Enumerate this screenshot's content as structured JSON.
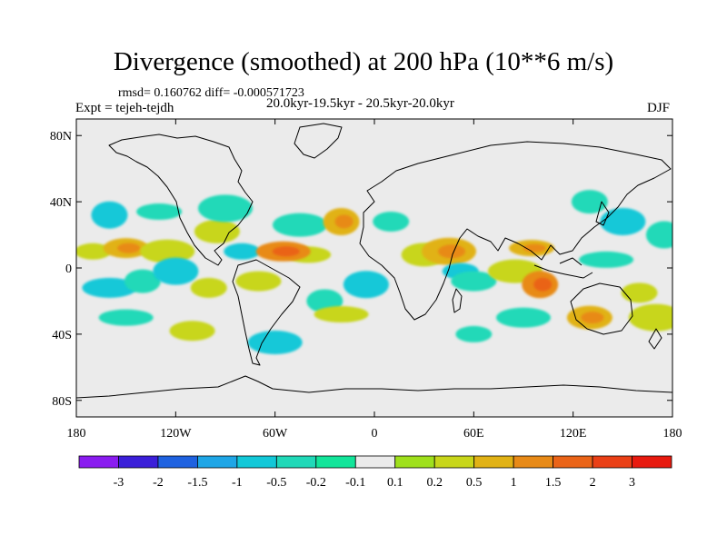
{
  "title": "Divergence (smoothed) at 200 hPa (10**6 m/s)",
  "stats": "rmsd= 0.160762 diff= -0.000571723",
  "experiment": "Expt = tejeh-tejdh",
  "period": "20.0kyr-19.5kyr - 20.5kyr-20.0kyr",
  "season": "DJF",
  "map": {
    "projection": "cylindrical-equidistant",
    "lon_range": [
      -180,
      180
    ],
    "lat_range": [
      -90,
      90
    ],
    "background_color": "#ebebeb",
    "x_ticks": [
      {
        "lon": -180,
        "label": "180"
      },
      {
        "lon": -120,
        "label": "120W"
      },
      {
        "lon": -60,
        "label": "60W"
      },
      {
        "lon": 0,
        "label": "0"
      },
      {
        "lon": 60,
        "label": "60E"
      },
      {
        "lon": 120,
        "label": "120E"
      },
      {
        "lon": 180,
        "label": "180"
      }
    ],
    "y_ticks": [
      {
        "lat": 80,
        "label": "80N"
      },
      {
        "lat": 40,
        "label": "40N"
      },
      {
        "lat": 0,
        "label": "0"
      },
      {
        "lat": -40,
        "label": "40S"
      },
      {
        "lat": -80,
        "label": "80S"
      }
    ]
  },
  "colorbar": {
    "colors": [
      "#8a1cf0",
      "#3b1fd9",
      "#1f62e0",
      "#1fa6e6",
      "#12c8d8",
      "#20d9b8",
      "#12e59a",
      "#ebebeb",
      "#9fe01c",
      "#c8d61a",
      "#e1b215",
      "#e88a17",
      "#ea6418",
      "#ea4016",
      "#e81a0f"
    ],
    "labels": [
      "-3",
      "-2",
      "-1.5",
      "-1",
      "-0.5",
      "-0.2",
      "-0.1",
      "0.1",
      "0.2",
      "0.5",
      "1",
      "1.5",
      "2",
      "3"
    ]
  },
  "divergence_regions": [
    {
      "lon": -170,
      "lat": 10,
      "level": 9
    },
    {
      "lon": -150,
      "lat": 12,
      "level": 10
    },
    {
      "lon": -125,
      "lat": 10,
      "level": 9
    },
    {
      "lon": -160,
      "lat": 32,
      "level": 4
    },
    {
      "lon": -130,
      "lat": 34,
      "level": 5
    },
    {
      "lon": -160,
      "lat": -12,
      "level": 4
    },
    {
      "lon": -140,
      "lat": -8,
      "level": 5
    },
    {
      "lon": -120,
      "lat": -2,
      "level": 4
    },
    {
      "lon": -150,
      "lat": -30,
      "level": 5
    },
    {
      "lon": -100,
      "lat": -12,
      "level": 9
    },
    {
      "lon": -95,
      "lat": 22,
      "level": 9
    },
    {
      "lon": -90,
      "lat": 36,
      "level": 5
    },
    {
      "lon": -80,
      "lat": 10,
      "level": 4
    },
    {
      "lon": -70,
      "lat": -8,
      "level": 9
    },
    {
      "lon": -45,
      "lat": 26,
      "level": 5
    },
    {
      "lon": -20,
      "lat": 28,
      "level": 10
    },
    {
      "lon": -40,
      "lat": 8,
      "level": 9
    },
    {
      "lon": -55,
      "lat": 10,
      "level": 11
    },
    {
      "lon": -30,
      "lat": -20,
      "level": 5
    },
    {
      "lon": -5,
      "lat": -10,
      "level": 4
    },
    {
      "lon": -20,
      "lat": -28,
      "level": 9
    },
    {
      "lon": 10,
      "lat": 28,
      "level": 5
    },
    {
      "lon": 30,
      "lat": 8,
      "level": 9
    },
    {
      "lon": 45,
      "lat": 10,
      "level": 10
    },
    {
      "lon": 52,
      "lat": -2,
      "level": 4
    },
    {
      "lon": 60,
      "lat": -8,
      "level": 5
    },
    {
      "lon": 85,
      "lat": -2,
      "level": 9
    },
    {
      "lon": 100,
      "lat": -10,
      "level": 11
    },
    {
      "lon": 95,
      "lat": 12,
      "level": 10
    },
    {
      "lon": 90,
      "lat": -30,
      "level": 5
    },
    {
      "lon": 130,
      "lat": 40,
      "level": 5
    },
    {
      "lon": 150,
      "lat": 28,
      "level": 4
    },
    {
      "lon": 140,
      "lat": 5,
      "level": 5
    },
    {
      "lon": 160,
      "lat": -15,
      "level": 9
    },
    {
      "lon": 130,
      "lat": -30,
      "level": 10
    },
    {
      "lon": 170,
      "lat": -30,
      "level": 9
    },
    {
      "lon": 60,
      "lat": -40,
      "level": 5
    },
    {
      "lon": -110,
      "lat": -38,
      "level": 9
    },
    {
      "lon": -60,
      "lat": -45,
      "level": 4
    },
    {
      "lon": 175,
      "lat": 20,
      "level": 5
    }
  ]
}
